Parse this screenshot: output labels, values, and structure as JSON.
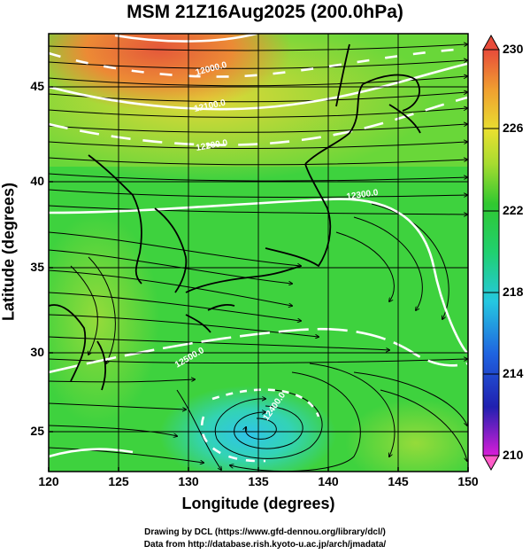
{
  "title": "MSM 21Z16Aug2025 (200.0hPa)",
  "axes": {
    "xlabel": "Longitude (degrees)",
    "ylabel": "Latitude  (degrees)",
    "xticks": [
      "120",
      "125",
      "130",
      "135",
      "140",
      "145",
      "150"
    ],
    "yticks": [
      "25",
      "30",
      "35",
      "40",
      "45"
    ]
  },
  "colorbar": {
    "ticks": [
      "230",
      "226",
      "222",
      "218",
      "214",
      "210"
    ],
    "range": [
      210,
      230
    ]
  },
  "contour_labels": [
    "12000.0",
    "12100.0",
    "12200.0",
    "12300.0",
    "12500.0",
    "12400.0"
  ],
  "credits": {
    "line1": "Drawing by DCL (https://www.gfd-dennou.org/library/dcl/)",
    "line2": "Data from http://database.rish.kyoto-u.ac.jp/arch/jmadata/"
  },
  "map": {
    "lon_range": [
      120,
      150
    ],
    "lat_range": [
      22.5,
      48
    ]
  }
}
